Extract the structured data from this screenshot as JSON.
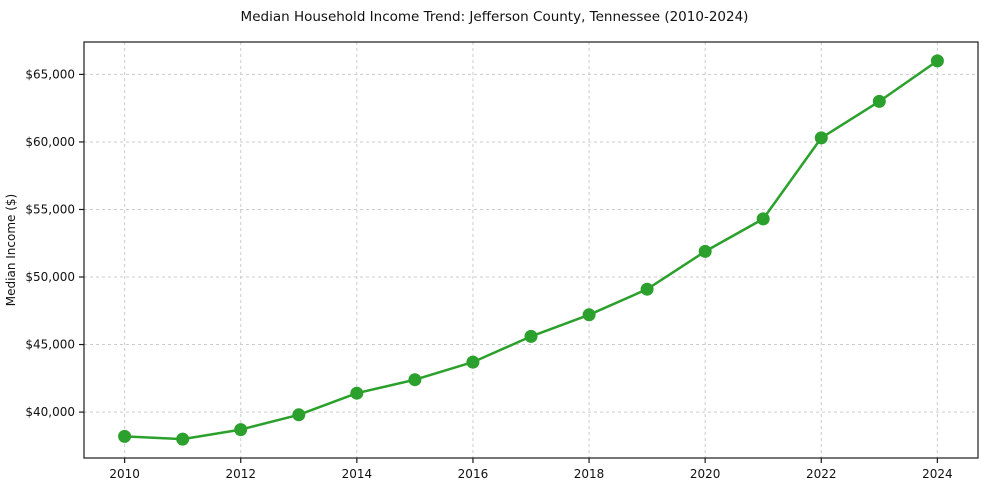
{
  "chart_data": {
    "type": "line",
    "title": "Median Household Income Trend: Jefferson County, Tennessee (2010-2024)",
    "xlabel": "",
    "ylabel": "Median Income ($)",
    "x": [
      2010,
      2011,
      2012,
      2013,
      2014,
      2015,
      2016,
      2017,
      2018,
      2019,
      2020,
      2021,
      2022,
      2023,
      2024
    ],
    "series": [
      {
        "name": "Median Household Income",
        "values": [
          38200,
          38000,
          38700,
          39800,
          41400,
          42400,
          43700,
          45600,
          47200,
          49100,
          51900,
          54300,
          60300,
          63000,
          66000
        ]
      }
    ],
    "xlim": [
      2009.3,
      2024.7
    ],
    "ylim": [
      36600,
      67400
    ],
    "x_ticks": [
      2010,
      2012,
      2014,
      2016,
      2018,
      2020,
      2022,
      2024
    ],
    "y_ticks": [
      40000,
      45000,
      50000,
      55000,
      60000,
      65000
    ],
    "y_tick_prefix": "$",
    "grid": true,
    "legend": "none",
    "line_color": "#2ca02c",
    "marker_color": "#2ca02c",
    "grid_color": "#cccccc",
    "axis_color": "#1a1a1a",
    "background_color": "#ffffff"
  }
}
